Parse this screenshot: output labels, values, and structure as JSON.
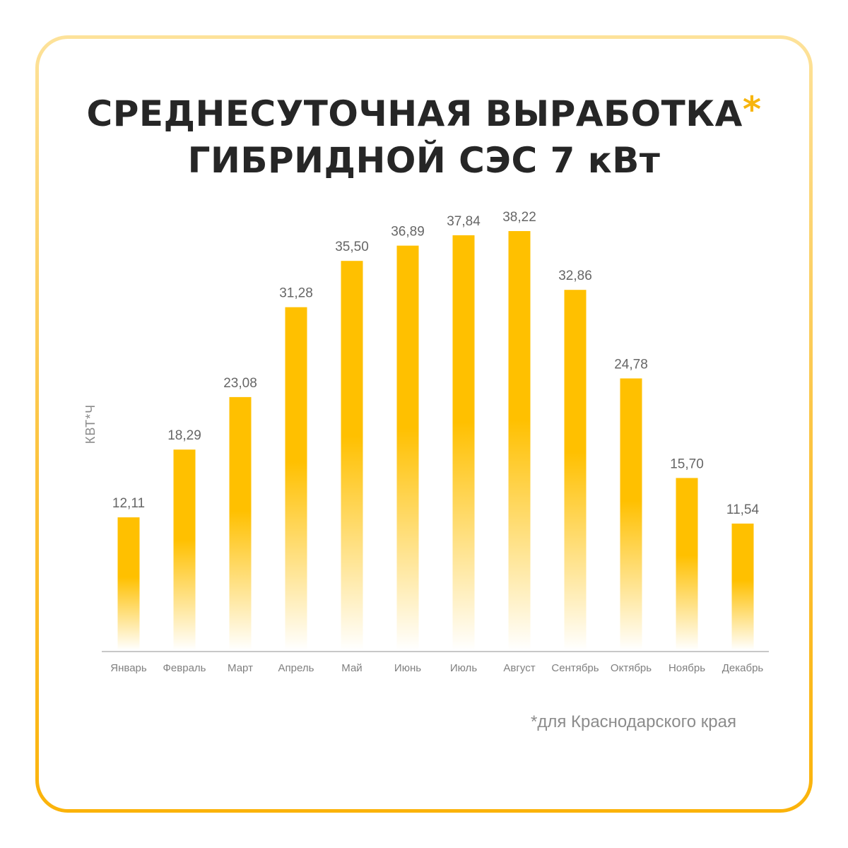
{
  "title": {
    "line1": "СРЕДНЕСУТОЧНАЯ ВЫРАБОТКА",
    "asterisk": "*",
    "line2": "ГИБРИДНОЙ СЭС 7 кВт"
  },
  "footnote": "*для Краснодарского края",
  "colors": {
    "bar_top": "#ffc000",
    "bar_bottom": "#ffffff",
    "frame_accent": "#fbb30a",
    "axis": "#c8c8c8",
    "label_text": "#666666"
  },
  "chart_data": {
    "type": "bar",
    "title": "СРЕДНЕСУТОЧНАЯ ВЫРАБОТКА* ГИБРИДНОЙ СЭС 7 кВт",
    "ylabel": "КВТ*Ч",
    "xlabel": "",
    "categories": [
      "Январь",
      "Февраль",
      "Март",
      "Апрель",
      "Май",
      "Июнь",
      "Июль",
      "Август",
      "Сентябрь",
      "Октябрь",
      "Ноябрь",
      "Декабрь"
    ],
    "values": [
      12.11,
      18.29,
      23.08,
      31.28,
      35.5,
      36.89,
      37.84,
      38.22,
      32.86,
      24.78,
      15.7,
      11.54
    ],
    "value_labels": [
      "12,11",
      "18,29",
      "23,08",
      "31,28",
      "35,50",
      "36,89",
      "37,84",
      "38,22",
      "32,86",
      "24,78",
      "15,70",
      "11,54"
    ],
    "ylim": [
      0,
      40
    ],
    "grid": false,
    "legend": "none"
  }
}
